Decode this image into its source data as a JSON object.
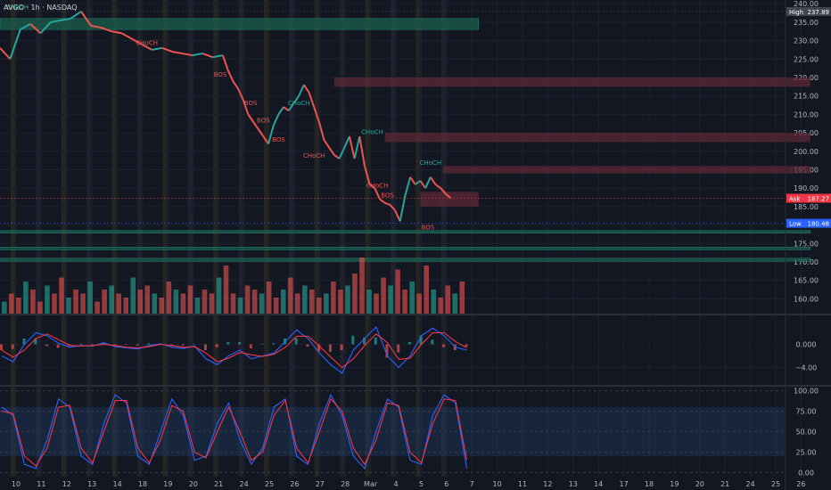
{
  "title": "AVGO · 1h · NASDAQ",
  "colors": {
    "bg": "#131722",
    "grid": "#1e2230",
    "up": "#26a69a",
    "down": "#ef5350",
    "text": "#b2b5be",
    "macd": "#2962ff",
    "signal": "#f23645",
    "k": "#2962ff",
    "d": "#f23645",
    "stoch_band": "#1e3a5f",
    "green_zone": "#1b5e4a",
    "red_zone": "#5c2a35"
  },
  "chart_data": [
    {
      "type": "line",
      "name": "price",
      "x_ticks": [
        "10",
        "11",
        "12",
        "13",
        "14",
        "18",
        "19",
        "20",
        "21",
        "24",
        "25",
        "26",
        "27",
        "28",
        "Mar",
        "4",
        "5",
        "6",
        "7",
        "10",
        "11",
        "12",
        "13",
        "14",
        "17",
        "18",
        "19",
        "20",
        "21",
        "24",
        "25",
        "26"
      ],
      "ylim": [
        156,
        241
      ],
      "y_ticks": [
        160,
        165,
        170,
        175,
        180,
        185,
        190,
        195,
        200,
        205,
        210,
        215,
        220,
        225,
        230,
        235,
        240
      ],
      "path": [
        [
          0,
          228
        ],
        [
          0.4,
          225
        ],
        [
          0.8,
          233
        ],
        [
          1.2,
          234.5
        ],
        [
          1.6,
          232
        ],
        [
          2.0,
          235
        ],
        [
          2.4,
          235.5
        ],
        [
          2.8,
          236
        ],
        [
          3.2,
          237.89
        ],
        [
          3.6,
          234
        ],
        [
          4.0,
          233.5
        ],
        [
          4.4,
          232.5
        ],
        [
          4.8,
          232
        ],
        [
          5.2,
          230.5
        ],
        [
          5.6,
          229
        ],
        [
          6.0,
          227.5
        ],
        [
          6.4,
          228
        ],
        [
          6.8,
          227
        ],
        [
          7.2,
          226.5
        ],
        [
          7.6,
          226
        ],
        [
          8.0,
          226.5
        ],
        [
          8.4,
          225.5
        ],
        [
          8.8,
          226
        ],
        [
          9.0,
          222
        ],
        [
          9.2,
          219
        ],
        [
          9.4,
          217
        ],
        [
          9.6,
          214
        ],
        [
          9.8,
          210
        ],
        [
          10.0,
          208
        ],
        [
          10.2,
          206
        ],
        [
          10.4,
          204
        ],
        [
          10.6,
          202
        ],
        [
          10.8,
          207
        ],
        [
          11.0,
          210
        ],
        [
          11.2,
          212
        ],
        [
          11.4,
          211
        ],
        [
          11.6,
          213
        ],
        [
          11.8,
          215
        ],
        [
          12.0,
          218
        ],
        [
          12.2,
          216
        ],
        [
          12.4,
          212
        ],
        [
          12.6,
          208
        ],
        [
          12.8,
          203
        ],
        [
          13.0,
          201
        ],
        [
          13.2,
          199
        ],
        [
          13.4,
          198
        ],
        [
          13.6,
          201
        ],
        [
          13.8,
          204
        ],
        [
          14.0,
          198
        ],
        [
          14.2,
          204
        ],
        [
          14.4,
          196
        ],
        [
          14.6,
          191
        ],
        [
          14.8,
          190
        ],
        [
          15.0,
          187
        ],
        [
          15.2,
          186
        ],
        [
          15.4,
          185.5
        ],
        [
          15.6,
          184
        ],
        [
          15.8,
          181
        ],
        [
          16.0,
          188
        ],
        [
          16.2,
          193
        ],
        [
          16.4,
          191
        ],
        [
          16.6,
          192
        ],
        [
          16.8,
          190
        ],
        [
          17.0,
          193
        ],
        [
          17.2,
          191
        ],
        [
          17.4,
          190
        ],
        [
          17.6,
          188.5
        ],
        [
          17.8,
          187.27
        ]
      ],
      "price_labels": [
        {
          "text": "High",
          "value": 237.89,
          "color": "#434651"
        },
        {
          "text": "Ask",
          "value": 187.27,
          "color": "#f23645"
        },
        {
          "text": "Low",
          "value": 180.48,
          "color": "#2962ff"
        }
      ],
      "label_values": {
        "high": "237.89",
        "ask": "187.27",
        "low": "180.48"
      },
      "annotations": [
        {
          "text": "CHoCH",
          "x": 0.7,
          "y": 238.5,
          "color": "#26a69a"
        },
        {
          "text": "CHoCH",
          "x": 5.8,
          "y": 228.8,
          "color": "#ef5350"
        },
        {
          "text": "BOS",
          "x": 8.7,
          "y": 220.2,
          "color": "#ef5350"
        },
        {
          "text": "CHoCH",
          "x": 11.8,
          "y": 212.5,
          "color": "#26a69a"
        },
        {
          "text": "BOS",
          "x": 9.9,
          "y": 212.5,
          "color": "#ef5350"
        },
        {
          "text": "BOS",
          "x": 10.4,
          "y": 207.8,
          "color": "#ef5350"
        },
        {
          "text": "BOS",
          "x": 11.0,
          "y": 202.6,
          "color": "#ef5350"
        },
        {
          "text": "CHoCH",
          "x": 12.4,
          "y": 198.3,
          "color": "#ef5350"
        },
        {
          "text": "CHoCH",
          "x": 14.7,
          "y": 204.6,
          "color": "#26a69a"
        },
        {
          "text": "CHoCH",
          "x": 14.9,
          "y": 190.2,
          "color": "#ef5350"
        },
        {
          "text": "BOS",
          "x": 15.3,
          "y": 187.5,
          "color": "#ef5350"
        },
        {
          "text": "CHoCH",
          "x": 17.0,
          "y": 196.3,
          "color": "#26a69a"
        },
        {
          "text": "BOS",
          "x": 16.9,
          "y": 178.8,
          "color": "#ef5350"
        }
      ],
      "zones": [
        {
          "y1": 236,
          "y2": 233,
          "x1": 0,
          "x2": 18.9,
          "color": "green_zone"
        },
        {
          "y1": 220,
          "y2": 217.5,
          "x1": 13.2,
          "x2": 32,
          "color": "red_zone"
        },
        {
          "y1": 205,
          "y2": 202.5,
          "x1": 15.2,
          "x2": 32,
          "color": "red_zone"
        },
        {
          "y1": 196,
          "y2": 194,
          "x1": 17.5,
          "x2": 32,
          "color": "red_zone"
        },
        {
          "y1": 189,
          "y2": 185,
          "x1": 16.6,
          "x2": 18.9,
          "color": "red_zone"
        },
        {
          "y1": 178.5,
          "y2": 177.8,
          "x1": 0,
          "x2": 32,
          "color": "green_zone"
        },
        {
          "y1": 174,
          "y2": 173.3,
          "x1": 0,
          "x2": 32,
          "color": "green_zone"
        },
        {
          "y1": 171,
          "y2": 170.2,
          "x1": 0,
          "x2": 32,
          "color": "green_zone"
        }
      ],
      "volume": [
        3,
        5,
        4,
        8,
        6,
        3,
        7,
        5,
        9,
        4,
        6,
        5,
        8,
        3,
        6,
        7,
        5,
        4,
        9,
        6,
        7,
        5,
        4,
        8,
        6,
        5,
        7,
        4,
        6,
        5,
        9,
        12,
        5,
        4,
        7,
        6,
        5,
        8,
        4,
        6,
        9,
        5,
        7,
        6,
        4,
        5,
        8,
        6,
        7,
        10,
        14,
        6,
        5,
        9,
        7,
        11,
        6,
        8,
        5,
        12,
        6,
        4,
        7,
        5,
        8
      ]
    },
    {
      "type": "line",
      "name": "MACD",
      "ylim": [
        -7,
        5
      ],
      "y_ticks": [
        -4,
        0
      ],
      "y_tick_labels": [
        "−4.00",
        "0.000"
      ],
      "macd": [
        -2,
        -3,
        0,
        2,
        1.5,
        0.2,
        -0.5,
        -0.2,
        -0.3,
        0.3,
        -0.4,
        -0.6,
        -0.8,
        -0.2,
        0.1,
        -0.5,
        -0.7,
        -0.3,
        -2.5,
        -3.5,
        -2,
        -1,
        -2.5,
        -2,
        -1.5,
        0.5,
        2.5,
        1,
        -1.5,
        -3.5,
        -5,
        -1,
        1,
        3,
        -2,
        -4,
        -2,
        1.5,
        2.8,
        1.5,
        -0.5,
        -1
      ],
      "signal": [
        -1,
        -2.2,
        -1,
        1,
        1.8,
        0.8,
        -0.2,
        -0.3,
        -0.2,
        0,
        -0.2,
        -0.5,
        -0.6,
        -0.4,
        0,
        -0.2,
        -0.5,
        -0.4,
        -1.5,
        -3,
        -2.4,
        -1.4,
        -1.8,
        -2.1,
        -1.7,
        -0.5,
        1.4,
        1.4,
        -0.3,
        -2.2,
        -4,
        -2.5,
        -0.2,
        1.8,
        0.3,
        -2.6,
        -2.4,
        0,
        2,
        2,
        0.5,
        -0.6
      ]
    },
    {
      "type": "line",
      "name": "Stochastic RSI",
      "ylim": [
        -5,
        105
      ],
      "y_ticks": [
        0,
        25,
        50,
        75,
        100
      ],
      "y_tick_labels": [
        "0.00",
        "25.00",
        "50.00",
        "75.00",
        "100.00"
      ],
      "band": [
        20,
        80
      ],
      "k": [
        80,
        70,
        10,
        5,
        40,
        90,
        80,
        20,
        10,
        60,
        95,
        85,
        20,
        10,
        50,
        90,
        70,
        15,
        20,
        60,
        85,
        40,
        10,
        30,
        80,
        90,
        20,
        10,
        60,
        95,
        70,
        20,
        5,
        50,
        90,
        80,
        15,
        10,
        70,
        95,
        85,
        5
      ],
      "d": [
        75,
        72,
        20,
        8,
        30,
        80,
        82,
        30,
        12,
        50,
        88,
        88,
        30,
        12,
        40,
        82,
        75,
        25,
        18,
        50,
        80,
        50,
        15,
        25,
        70,
        88,
        30,
        12,
        50,
        90,
        75,
        30,
        10,
        40,
        85,
        82,
        25,
        12,
        60,
        90,
        88,
        15
      ]
    }
  ]
}
